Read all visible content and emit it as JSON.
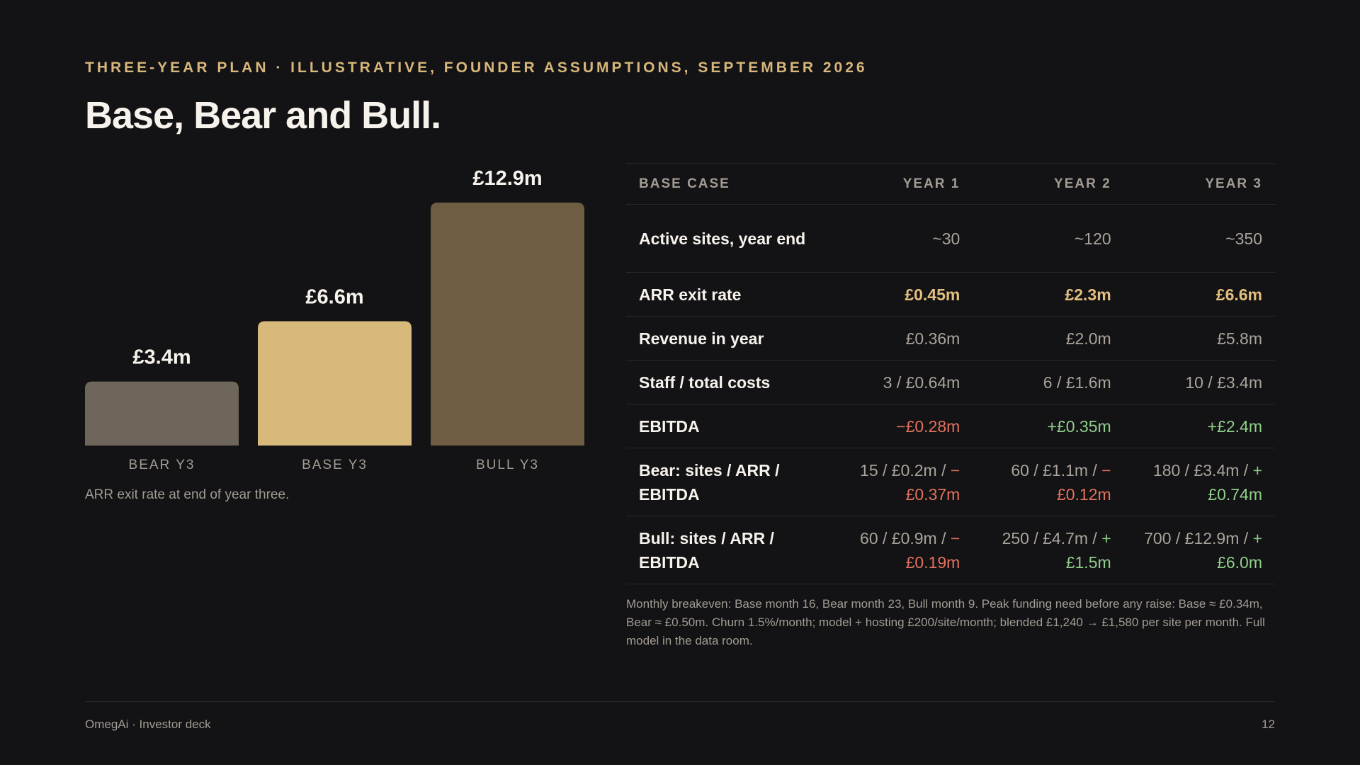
{
  "header": {
    "kicker": "THREE-YEAR PLAN · ILLUSTRATIVE, FOUNDER ASSUMPTIONS, SEPTEMBER 2026",
    "title": "Base, Bear and Bull."
  },
  "chart_data": {
    "type": "bar",
    "categories": [
      "BEAR Y3",
      "BASE Y3",
      "BULL Y3"
    ],
    "values": [
      3.4,
      6.6,
      12.9
    ],
    "value_labels": [
      "£3.4m",
      "£6.6m",
      "£12.9m"
    ],
    "bar_colors": [
      "#6e665a",
      "#d8b97c",
      "#6e5d42"
    ],
    "ylim": [
      0,
      12.9
    ],
    "grid": false,
    "caption": "ARR exit rate at end of year three."
  },
  "table": {
    "headers": [
      "BASE CASE",
      "YEAR 1",
      "YEAR 2",
      "YEAR 3"
    ],
    "rows": [
      {
        "label": "Active sites, year end",
        "cells": [
          "~30",
          "~120",
          "~350"
        ]
      },
      {
        "label": "ARR exit rate",
        "cells": [
          "£0.45m",
          "£2.3m",
          "£6.6m"
        ]
      },
      {
        "label": "Revenue in year",
        "cells": [
          "£0.36m",
          "£2.0m",
          "£5.8m"
        ]
      },
      {
        "label": "Staff / total costs",
        "cells": [
          "3 / £0.64m",
          "6 / £1.6m",
          "10 / £3.4m"
        ]
      },
      {
        "label": "EBITDA",
        "cells": [
          "−£0.28m",
          "+£0.35m",
          "+£2.4m"
        ]
      },
      {
        "label": "Bear: sites / ARR / EBITDA",
        "cells": [
          {
            "a": "15 / £0.2m / ",
            "b": "−£0.37m"
          },
          {
            "a": "60 / £1.1m / ",
            "b": "−£0.12m"
          },
          {
            "a": "180 / £3.4m / ",
            "b": "+£0.74m"
          }
        ]
      },
      {
        "label": "Bull: sites / ARR / EBITDA",
        "cells": [
          {
            "a": "60 / £0.9m / ",
            "b": "−£0.19m"
          },
          {
            "a": "250 / £4.7m / ",
            "b": "+£1.5m"
          },
          {
            "a": "700 / £12.9m / ",
            "b": "+£6.0m"
          }
        ]
      }
    ]
  },
  "footnote": "Monthly breakeven: Base month 16, Bear month 23, Bull month 9. Peak funding need before any raise: Base ≈ £0.34m, Bear ≈ £0.50m. Churn 1.5%/month; model + hosting £200/site/month; blended £1,240 → £1,580 per site per month. Full model in the data room.",
  "footer": {
    "brand": "OmegAi · Investor deck",
    "page_number": "12"
  },
  "colors": {
    "background": "#131214",
    "accent_gold": "#d7b77b",
    "negative": "#e3735d",
    "positive": "#8fcf8a"
  }
}
